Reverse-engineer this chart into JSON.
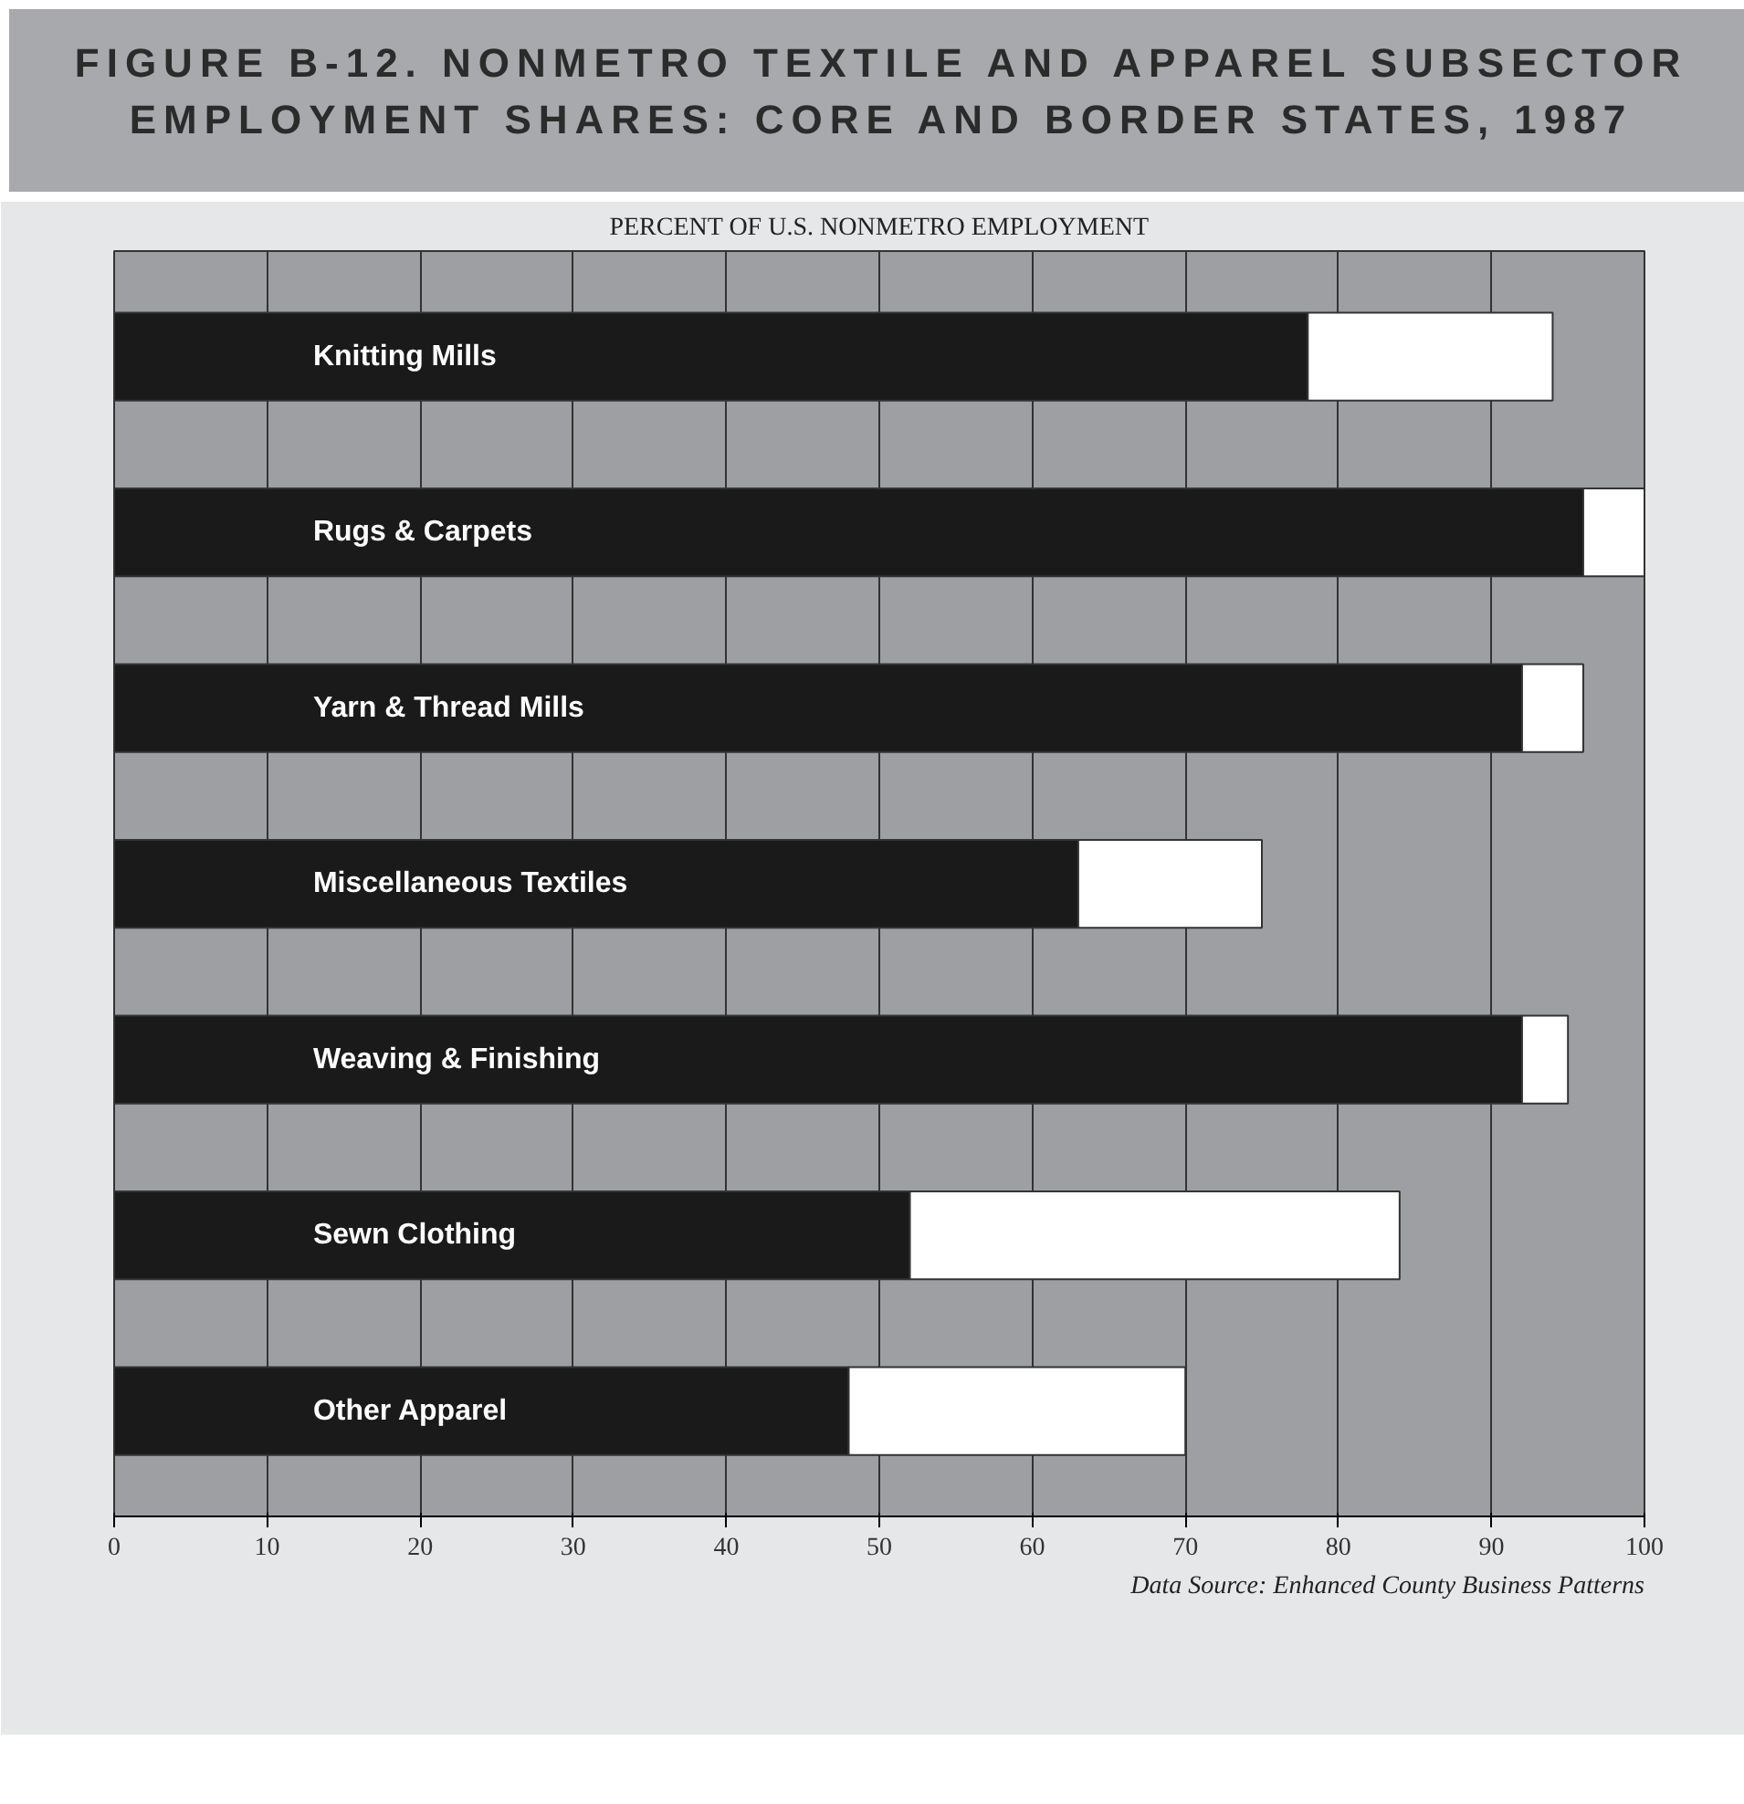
{
  "chart_data": {
    "type": "bar",
    "orientation": "horizontal",
    "stacked": true,
    "title": "FIGURE B-12. NONMETRO TEXTILE AND APPAREL SUBSECTOR EMPLOYMENT SHARES: CORE AND BORDER STATES, 1987",
    "subtitle": "PERCENT OF U.S. NONMETRO EMPLOYMENT",
    "categories": [
      "Knitting Mills",
      "Rugs & Carpets",
      "Yarn & Thread Mills",
      "Miscellaneous Textiles",
      "Weaving & Finishing",
      "Sewn Clothing",
      "Other Apparel"
    ],
    "series": [
      {
        "color": "#1a1a1a",
        "values": [
          78,
          96,
          92,
          63,
          92,
          52,
          48
        ]
      },
      {
        "color": "#ffffff",
        "values": [
          16,
          4,
          4,
          12,
          3,
          32,
          22
        ]
      }
    ],
    "xlim": [
      0,
      100
    ],
    "xticks": [
      0,
      10,
      20,
      30,
      40,
      50,
      60,
      70,
      80,
      90,
      100
    ],
    "grid": "x",
    "annotations": [
      "Data Source: Enhanced County Business Patterns"
    ]
  }
}
